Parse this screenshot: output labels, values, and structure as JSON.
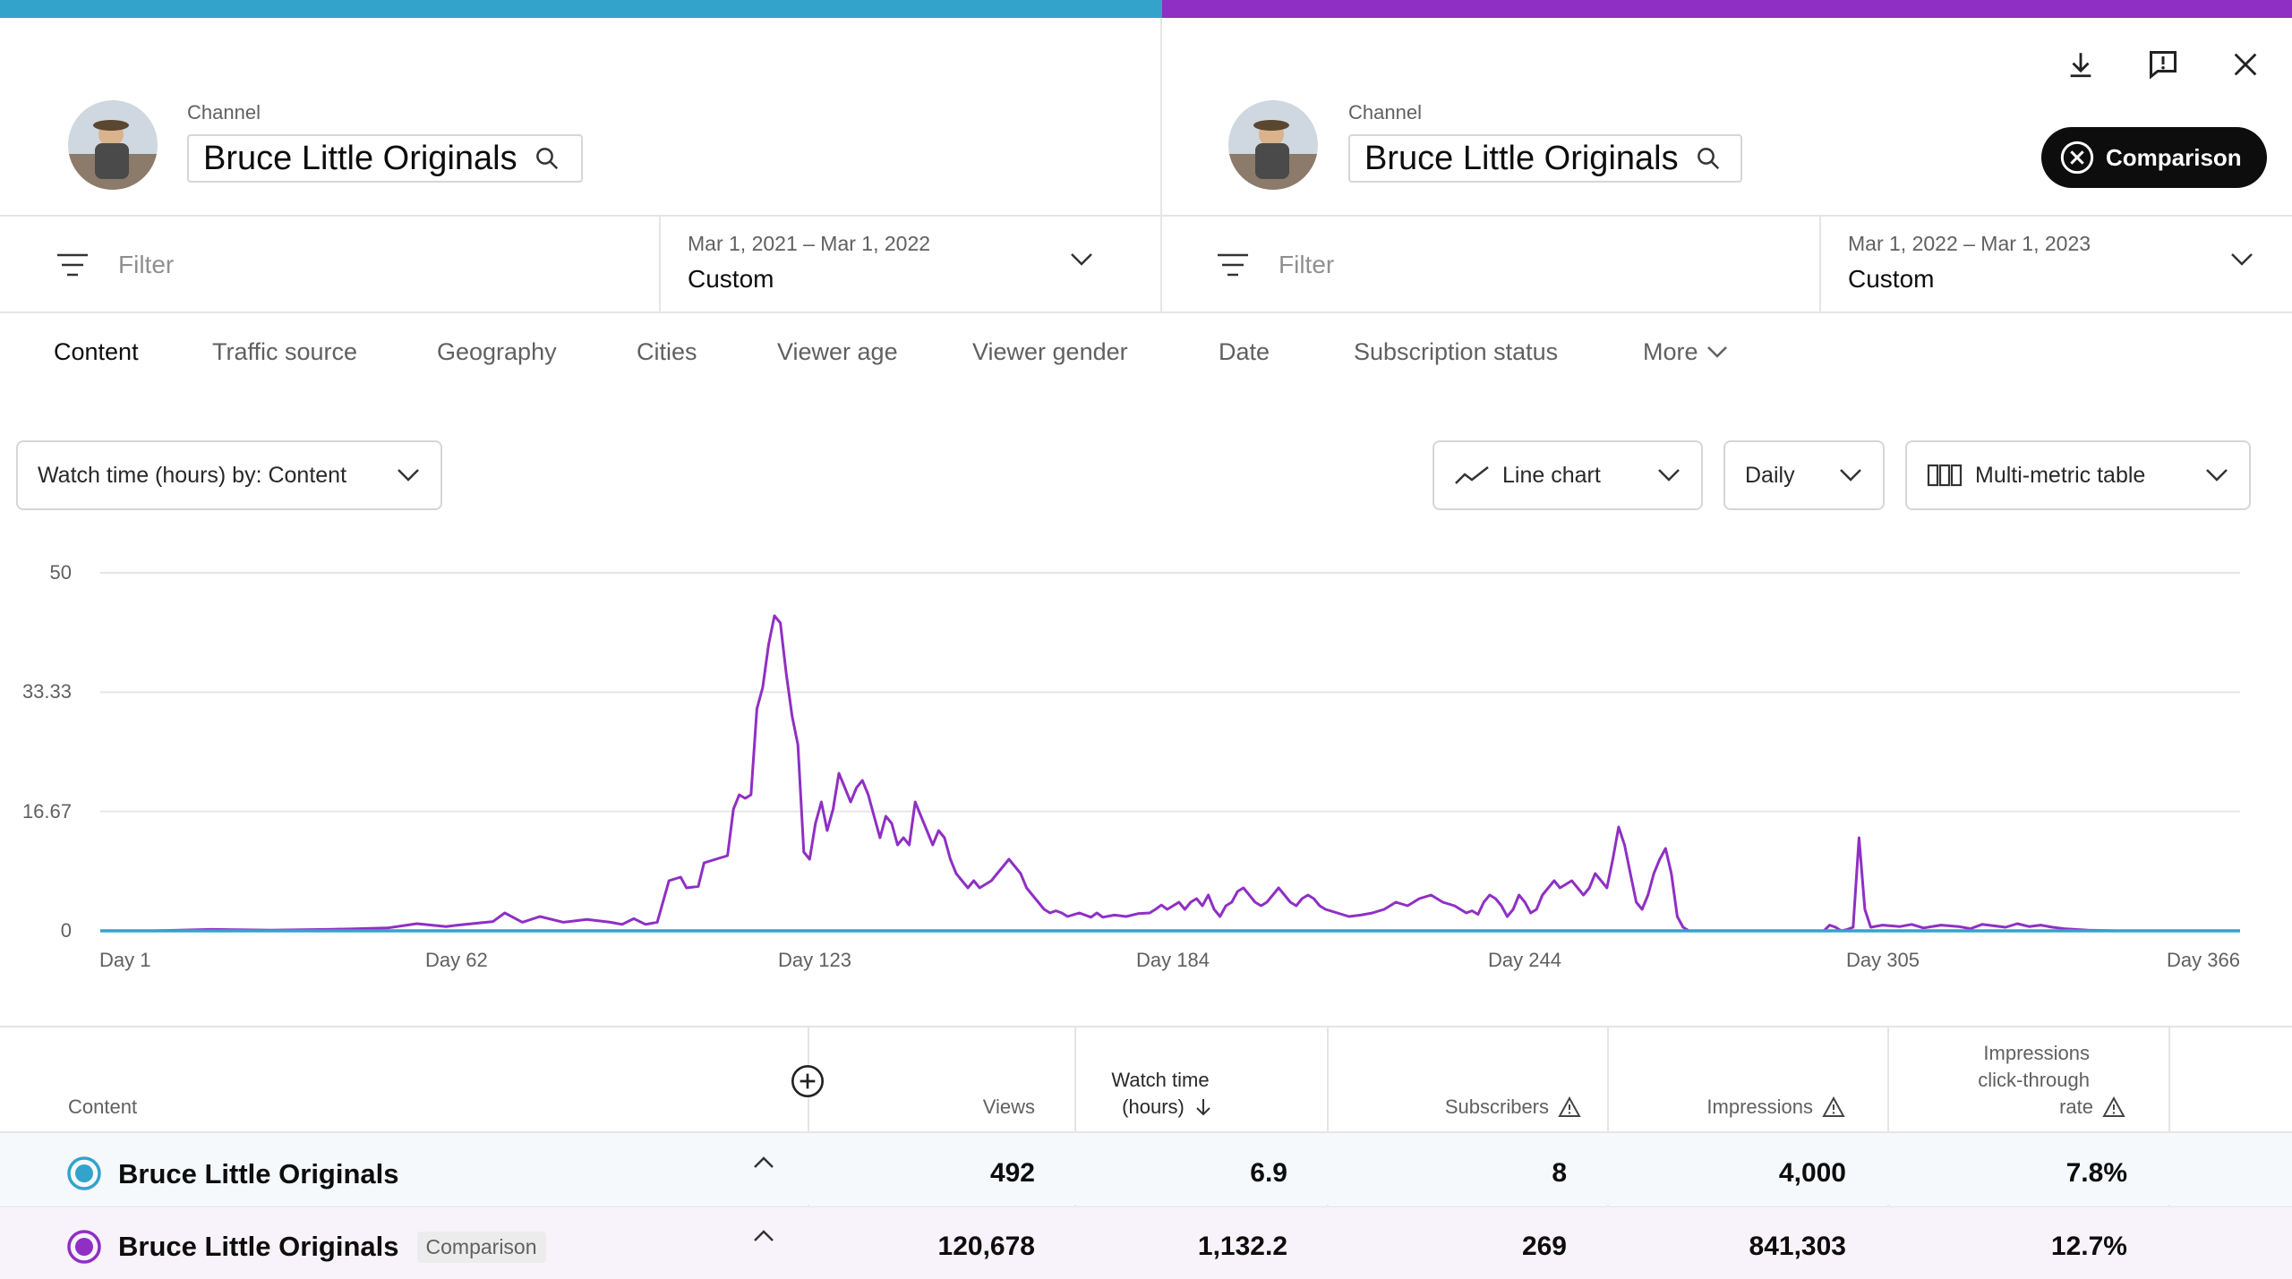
{
  "colors": {
    "primary": "#33a3cc",
    "comparison": "#8f2fc4"
  },
  "left": {
    "channel_label": "Channel",
    "channel_name": "Bruce Little Originals",
    "filter_placeholder": "Filter",
    "date_range": "Mar 1, 2021 – Mar 1, 2022",
    "date_type": "Custom"
  },
  "right": {
    "channel_label": "Channel",
    "channel_name": "Bruce Little Originals",
    "filter_placeholder": "Filter",
    "date_range": "Mar 1, 2022 – Mar 1, 2023",
    "date_type": "Custom",
    "comparison_button": "Comparison"
  },
  "top_icons": [
    "download-icon",
    "feedback-icon",
    "close-icon"
  ],
  "tabs": [
    "Content",
    "Traffic source",
    "Geography",
    "Cities",
    "Viewer age",
    "Viewer gender",
    "Date",
    "Subscription status",
    "More"
  ],
  "controls": {
    "metric_select": "Watch time (hours) by: Content",
    "chart_type": "Line chart",
    "interval": "Daily",
    "table_type": "Multi-metric table"
  },
  "chart_data": {
    "type": "line",
    "ylim": [
      0,
      50
    ],
    "yticks": [
      "50",
      "33.33",
      "16.67",
      "0"
    ],
    "xticks": [
      "Day 1",
      "Day 62",
      "Day 123",
      "Day 184",
      "Day 244",
      "Day 305",
      "Day 366"
    ],
    "xlim": [
      1,
      366
    ],
    "series": [
      {
        "color": "#8f2fc4",
        "points": [
          [
            1,
            0
          ],
          [
            10,
            0
          ],
          [
            20,
            0.2
          ],
          [
            30,
            0.1
          ],
          [
            40,
            0.2
          ],
          [
            50,
            0.4
          ],
          [
            55,
            1
          ],
          [
            60,
            0.6
          ],
          [
            62,
            0.8
          ],
          [
            68,
            1.3
          ],
          [
            70,
            2.5
          ],
          [
            73,
            1.2
          ],
          [
            76,
            2
          ],
          [
            80,
            1.2
          ],
          [
            84,
            1.6
          ],
          [
            88,
            1.2
          ],
          [
            90,
            0.9
          ],
          [
            92,
            1.7
          ],
          [
            94,
            0.9
          ],
          [
            96,
            1.2
          ],
          [
            98,
            7
          ],
          [
            100,
            7.5
          ],
          [
            101,
            6
          ],
          [
            103,
            6.2
          ],
          [
            104,
            9.5
          ],
          [
            106,
            10
          ],
          [
            108,
            10.5
          ],
          [
            109,
            17
          ],
          [
            110,
            19
          ],
          [
            111,
            18.5
          ],
          [
            112,
            19
          ],
          [
            113,
            31
          ],
          [
            114,
            34
          ],
          [
            115,
            40
          ],
          [
            116,
            44
          ],
          [
            117,
            43
          ],
          [
            118,
            36
          ],
          [
            119,
            30
          ],
          [
            120,
            26
          ],
          [
            121,
            11
          ],
          [
            122,
            10
          ],
          [
            123,
            15
          ],
          [
            124,
            18
          ],
          [
            125,
            14
          ],
          [
            126,
            17
          ],
          [
            127,
            22
          ],
          [
            128,
            20
          ],
          [
            129,
            18
          ],
          [
            130,
            20
          ],
          [
            131,
            21
          ],
          [
            132,
            19
          ],
          [
            133,
            16
          ],
          [
            134,
            13
          ],
          [
            135,
            16
          ],
          [
            136,
            15
          ],
          [
            137,
            12
          ],
          [
            138,
            13
          ],
          [
            139,
            12
          ],
          [
            140,
            18
          ],
          [
            141,
            16
          ],
          [
            142,
            14
          ],
          [
            143,
            12
          ],
          [
            144,
            14
          ],
          [
            145,
            13
          ],
          [
            146,
            10
          ],
          [
            147,
            8
          ],
          [
            148,
            7
          ],
          [
            149,
            6
          ],
          [
            150,
            7
          ],
          [
            151,
            6
          ],
          [
            152,
            6.5
          ],
          [
            153,
            7
          ],
          [
            154,
            8
          ],
          [
            155,
            9
          ],
          [
            156,
            10
          ],
          [
            157,
            9
          ],
          [
            158,
            8
          ],
          [
            159,
            6
          ],
          [
            160,
            5
          ],
          [
            161,
            4
          ],
          [
            162,
            3
          ],
          [
            163,
            2.5
          ],
          [
            164,
            2.8
          ],
          [
            165,
            2.5
          ],
          [
            166,
            2
          ],
          [
            168,
            2.5
          ],
          [
            170,
            1.9
          ],
          [
            171,
            2.5
          ],
          [
            172,
            1.9
          ],
          [
            174,
            2.2
          ],
          [
            176,
            2
          ],
          [
            178,
            2.4
          ],
          [
            180,
            2.5
          ],
          [
            181,
            3
          ],
          [
            182,
            3.6
          ],
          [
            183,
            3
          ],
          [
            184,
            3.5
          ],
          [
            185,
            4
          ],
          [
            186,
            3
          ],
          [
            187,
            4
          ],
          [
            188,
            4.5
          ],
          [
            189,
            3.5
          ],
          [
            190,
            5
          ],
          [
            191,
            3
          ],
          [
            192,
            2
          ],
          [
            193,
            3.5
          ],
          [
            194,
            4
          ],
          [
            195,
            5.5
          ],
          [
            196,
            6
          ],
          [
            197,
            5
          ],
          [
            198,
            4
          ],
          [
            199,
            3.5
          ],
          [
            200,
            4
          ],
          [
            201,
            5
          ],
          [
            202,
            6
          ],
          [
            203,
            5
          ],
          [
            204,
            4
          ],
          [
            205,
            3.5
          ],
          [
            206,
            4.5
          ],
          [
            207,
            5
          ],
          [
            208,
            4.5
          ],
          [
            209,
            3.5
          ],
          [
            210,
            3
          ],
          [
            212,
            2.5
          ],
          [
            214,
            2
          ],
          [
            216,
            2.2
          ],
          [
            218,
            2.5
          ],
          [
            220,
            3
          ],
          [
            222,
            4
          ],
          [
            224,
            3.5
          ],
          [
            226,
            4.5
          ],
          [
            228,
            5
          ],
          [
            230,
            4
          ],
          [
            232,
            3.5
          ],
          [
            234,
            2.5
          ],
          [
            235,
            2.8
          ],
          [
            236,
            2.3
          ],
          [
            237,
            4
          ],
          [
            238,
            5
          ],
          [
            239,
            4.5
          ],
          [
            240,
            3.5
          ],
          [
            241,
            2
          ],
          [
            242,
            3
          ],
          [
            243,
            5
          ],
          [
            244,
            4
          ],
          [
            245,
            2.5
          ],
          [
            246,
            3
          ],
          [
            247,
            5
          ],
          [
            248,
            6
          ],
          [
            249,
            7
          ],
          [
            250,
            6
          ],
          [
            251,
            6.5
          ],
          [
            252,
            7
          ],
          [
            253,
            6
          ],
          [
            254,
            5
          ],
          [
            255,
            6
          ],
          [
            256,
            8
          ],
          [
            257,
            7
          ],
          [
            258,
            6
          ],
          [
            259,
            10
          ],
          [
            260,
            14.5
          ],
          [
            261,
            12
          ],
          [
            262,
            8
          ],
          [
            263,
            4
          ],
          [
            264,
            3
          ],
          [
            265,
            5
          ],
          [
            266,
            8
          ],
          [
            267,
            10
          ],
          [
            268,
            11.5
          ],
          [
            269,
            8
          ],
          [
            270,
            2
          ],
          [
            271,
            0.5
          ],
          [
            272,
            0
          ],
          [
            280,
            0
          ],
          [
            290,
            0
          ],
          [
            295,
            0
          ],
          [
            296,
            0.8
          ],
          [
            297,
            0.5
          ],
          [
            298,
            0
          ],
          [
            299,
            0.2
          ],
          [
            300,
            0.5
          ],
          [
            301,
            13
          ],
          [
            302,
            3
          ],
          [
            303,
            0.5
          ],
          [
            305,
            0.8
          ],
          [
            308,
            0.6
          ],
          [
            310,
            0.9
          ],
          [
            312,
            0.4
          ],
          [
            315,
            0.8
          ],
          [
            318,
            0.6
          ],
          [
            320,
            0.3
          ],
          [
            322,
            0.9
          ],
          [
            324,
            0.7
          ],
          [
            326,
            0.5
          ],
          [
            328,
            1
          ],
          [
            330,
            0.6
          ],
          [
            332,
            0.8
          ],
          [
            334,
            0.5
          ],
          [
            336,
            0.3
          ],
          [
            340,
            0.1
          ],
          [
            345,
            0
          ],
          [
            366,
            0
          ]
        ]
      },
      {
        "color": "#33a3cc",
        "points": [
          [
            1,
            0
          ],
          [
            366,
            0
          ]
        ]
      }
    ]
  },
  "table": {
    "add_column_icon": "add-circle-icon",
    "headers": {
      "content": "Content",
      "views": "Views",
      "watch_time_1": "Watch time",
      "watch_time_2": "(hours)",
      "subscribers": "Subscribers",
      "impressions": "Impressions",
      "ctr_1": "Impressions",
      "ctr_2": "click-through",
      "ctr_3": "rate"
    },
    "rows": [
      {
        "name": "Bruce Little Originals",
        "badge": "",
        "views": "492",
        "watch_time": "6.9",
        "subscribers": "8",
        "impressions": "4,000",
        "ctr": "7.8%"
      },
      {
        "name": "Bruce Little Originals",
        "badge": "Comparison",
        "views": "120,678",
        "watch_time": "1,132.2",
        "subscribers": "269",
        "impressions": "841,303",
        "ctr": "12.7%"
      }
    ]
  }
}
